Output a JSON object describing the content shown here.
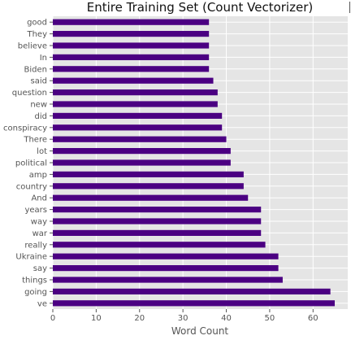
{
  "chart_data": {
    "type": "bar",
    "orientation": "horizontal",
    "title": "Entire Training Set (Count Vectorizer)",
    "xlabel": "Word Count",
    "ylabel": "",
    "xlim": [
      0,
      68
    ],
    "xticks": [
      0,
      10,
      20,
      30,
      40,
      50,
      60
    ],
    "grid": true,
    "legend": "none",
    "bar_color": "#4b0082",
    "background_color": "#e5e5e5",
    "categories": [
      "good",
      "They",
      "believe",
      "In",
      "Biden",
      "said",
      "question",
      "new",
      "did",
      "conspiracy",
      "There",
      "lot",
      "political",
      "amp",
      "country",
      "And",
      "years",
      "way",
      "war",
      "really",
      "Ukraine",
      "say",
      "things",
      "going",
      "ve"
    ],
    "values": [
      36,
      36,
      36,
      36,
      36,
      37,
      38,
      38,
      39,
      39,
      40,
      41,
      41,
      44,
      44,
      45,
      48,
      48,
      48,
      49,
      52,
      52,
      53,
      64,
      65
    ]
  }
}
